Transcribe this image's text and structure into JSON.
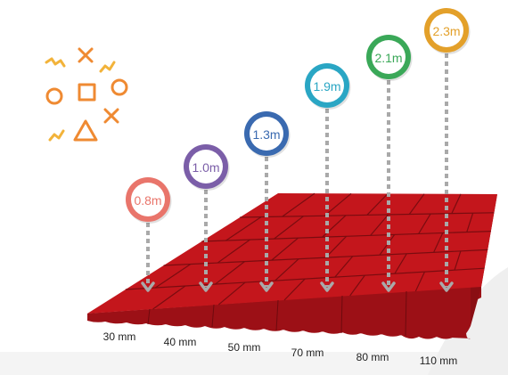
{
  "heights": [
    {
      "label": "0.8m",
      "color": "#e9756b"
    },
    {
      "label": "1.0m",
      "color": "#7b5ea8"
    },
    {
      "label": "1.3m",
      "color": "#3a6ab0"
    },
    {
      "label": "1.9m",
      "color": "#2aa6c4"
    },
    {
      "label": "2.1m",
      "color": "#3aa858"
    },
    {
      "label": "2.3m",
      "color": "#e3a02a"
    }
  ],
  "thicknesses": [
    "30 mm",
    "40 mm",
    "50 mm",
    "70 mm",
    "80 mm",
    "110 mm"
  ],
  "colors": {
    "tile_top": "#c4161c",
    "tile_dark": "#9c1016",
    "grout": "#7a0c10",
    "arrow": "#a9a9a9",
    "decor_orange": "#ef8a32",
    "decor_yellow": "#f2b33a"
  },
  "icons": [
    "zigzag-icon",
    "x-icon",
    "circle-icon",
    "square-icon",
    "triangle-icon"
  ]
}
